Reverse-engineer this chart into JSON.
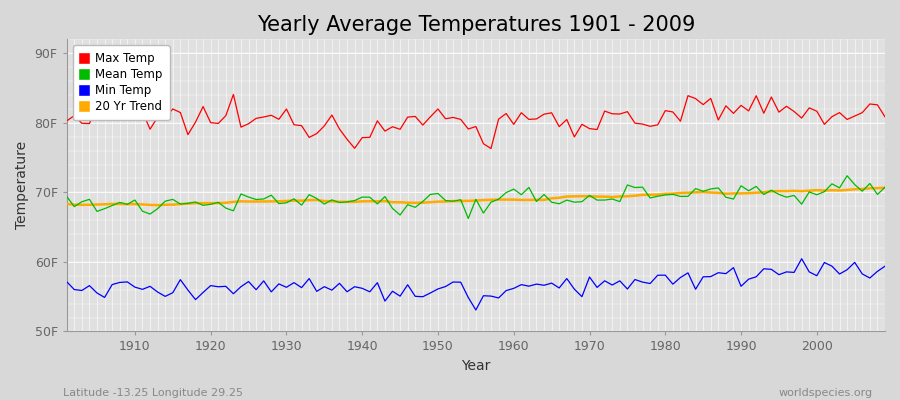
{
  "title": "Yearly Average Temperatures 1901 - 2009",
  "xlabel": "Year",
  "ylabel": "Temperature",
  "x_start": 1901,
  "x_end": 2009,
  "yticks": [
    50,
    60,
    70,
    80,
    90
  ],
  "ytick_labels": [
    "50F",
    "60F",
    "70F",
    "80F",
    "90F"
  ],
  "ylim": [
    50,
    92
  ],
  "xlim": [
    1901,
    2009
  ],
  "bg_color": "#d8d8d8",
  "plot_bg_color": "#e0e0e0",
  "grid_color": "#ffffff",
  "legend_labels": [
    "Max Temp",
    "Mean Temp",
    "Min Temp",
    "20 Yr Trend"
  ],
  "legend_colors": [
    "#ff0000",
    "#00bb00",
    "#0000ff",
    "#ffaa00"
  ],
  "line_colors": {
    "max": "#ff0000",
    "mean": "#00bb00",
    "min": "#0000ff",
    "trend": "#ffaa00"
  },
  "footer_left": "Latitude -13.25 Longitude 29.25",
  "footer_right": "worldspecies.org",
  "title_fontsize": 15,
  "axis_label_fontsize": 10,
  "tick_fontsize": 9,
  "footer_fontsize": 8
}
